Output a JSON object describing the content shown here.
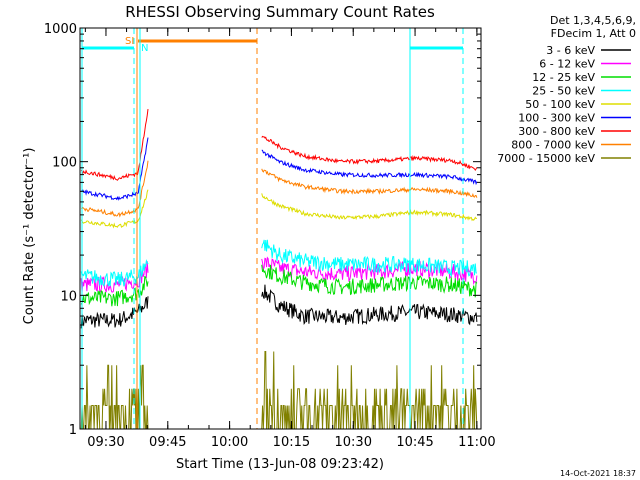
{
  "chart_data": {
    "type": "line",
    "title": "RHESSI Observing Summary Count Rates",
    "xlabel": "Start Time (13-Jun-08 09:23:42)",
    "ylabel": "Count Rate (s⁻¹ detector⁻¹)",
    "y_scale": "log",
    "ylim": [
      1,
      1000
    ],
    "xlim": [
      "09:23:42",
      "11:01:00"
    ],
    "x_ticks": [
      "09:30",
      "09:45",
      "10:00",
      "10:15",
      "10:30",
      "10:45",
      "11:00"
    ],
    "y_ticks": [
      "1",
      "10",
      "100",
      "1000"
    ],
    "legend_header": [
      "Det 1,3,4,5,6,9,",
      "FDecim 1, Att 0"
    ],
    "legend_position": "right",
    "footer": "14-Oct-2021 18:37",
    "flags": {
      "saa_label": "SI",
      "night_label": "N",
      "saa_color": "#ff8000",
      "night_color": "#00ffff"
    },
    "series": [
      {
        "name": "3 - 6 keV",
        "color": "#000000",
        "pre": [
          [
            9.4,
            6.5
          ],
          [
            9.55,
            6.5
          ],
          [
            9.63,
            7.5
          ],
          [
            9.67,
            9
          ]
        ],
        "post": [
          [
            10.13,
            11
          ],
          [
            10.2,
            8.5
          ],
          [
            10.3,
            7
          ],
          [
            10.45,
            6.8
          ],
          [
            10.6,
            7.2
          ],
          [
            10.75,
            7.5
          ],
          [
            10.9,
            7.2
          ],
          [
            11.0,
            6.8
          ]
        ]
      },
      {
        "name": "6 - 12 keV",
        "color": "#ff00ff",
        "pre": [
          [
            9.4,
            12
          ],
          [
            9.55,
            12
          ],
          [
            9.63,
            13
          ],
          [
            9.67,
            16
          ]
        ],
        "post": [
          [
            10.13,
            18
          ],
          [
            10.2,
            16
          ],
          [
            10.3,
            15
          ],
          [
            10.45,
            14.5
          ],
          [
            10.6,
            15
          ],
          [
            10.75,
            16
          ],
          [
            10.9,
            15
          ],
          [
            11.0,
            14
          ]
        ]
      },
      {
        "name": "12 - 25 keV",
        "color": "#00dd00",
        "pre": [
          [
            9.4,
            9.5
          ],
          [
            9.55,
            9.5
          ],
          [
            9.63,
            10.5
          ],
          [
            9.67,
            13
          ]
        ],
        "post": [
          [
            10.13,
            16
          ],
          [
            10.2,
            14
          ],
          [
            10.3,
            12.5
          ],
          [
            10.45,
            11.5
          ],
          [
            10.6,
            12
          ],
          [
            10.75,
            12.5
          ],
          [
            10.9,
            12
          ],
          [
            11.0,
            11
          ]
        ]
      },
      {
        "name": "25 - 50 keV",
        "color": "#00ffff",
        "pre": [
          [
            9.4,
            14
          ],
          [
            9.55,
            13
          ],
          [
            9.63,
            14
          ],
          [
            9.67,
            18
          ]
        ],
        "post": [
          [
            10.13,
            25
          ],
          [
            10.2,
            20
          ],
          [
            10.3,
            18
          ],
          [
            10.45,
            17
          ],
          [
            10.6,
            17
          ],
          [
            10.75,
            17
          ],
          [
            10.9,
            16
          ],
          [
            11.0,
            16
          ]
        ]
      },
      {
        "name": "50 - 100 keV",
        "color": "#dddd00",
        "pre": [
          [
            9.4,
            36
          ],
          [
            9.55,
            33
          ],
          [
            9.63,
            36
          ],
          [
            9.67,
            60
          ]
        ],
        "post": [
          [
            10.13,
            56
          ],
          [
            10.2,
            47
          ],
          [
            10.3,
            41
          ],
          [
            10.45,
            38
          ],
          [
            10.6,
            39
          ],
          [
            10.75,
            42
          ],
          [
            10.9,
            40
          ],
          [
            11.0,
            37
          ]
        ]
      },
      {
        "name": "100 - 300 keV",
        "color": "#0000ff",
        "pre": [
          [
            9.4,
            60
          ],
          [
            9.55,
            53
          ],
          [
            9.63,
            58
          ],
          [
            9.67,
            150
          ]
        ],
        "post": [
          [
            10.13,
            120
          ],
          [
            10.2,
            100
          ],
          [
            10.3,
            87
          ],
          [
            10.45,
            80
          ],
          [
            10.6,
            79
          ],
          [
            10.75,
            80
          ],
          [
            10.9,
            77
          ],
          [
            11.0,
            70
          ]
        ]
      },
      {
        "name": "300 - 800 keV",
        "color": "#ff0000",
        "pre": [
          [
            9.4,
            85
          ],
          [
            9.55,
            75
          ],
          [
            9.63,
            82
          ],
          [
            9.67,
            250
          ]
        ],
        "post": [
          [
            10.13,
            155
          ],
          [
            10.2,
            130
          ],
          [
            10.3,
            110
          ],
          [
            10.45,
            100
          ],
          [
            10.6,
            101
          ],
          [
            10.75,
            106
          ],
          [
            10.9,
            102
          ],
          [
            11.0,
            88
          ]
        ]
      },
      {
        "name": "800 - 7000 keV",
        "color": "#ff8000",
        "pre": [
          [
            9.4,
            45
          ],
          [
            9.55,
            40
          ],
          [
            9.63,
            44
          ],
          [
            9.67,
            100
          ]
        ],
        "post": [
          [
            10.13,
            88
          ],
          [
            10.2,
            74
          ],
          [
            10.3,
            65
          ],
          [
            10.45,
            60
          ],
          [
            10.6,
            60
          ],
          [
            10.75,
            62
          ],
          [
            10.9,
            60
          ],
          [
            11.0,
            55
          ]
        ]
      },
      {
        "name": "7000 - 15000 keV",
        "color": "#808000",
        "pre": [
          [
            9.4,
            1.5
          ],
          [
            9.5,
            1.5
          ],
          [
            9.6,
            1.5
          ],
          [
            9.67,
            1.5
          ]
        ],
        "post": [
          [
            10.13,
            1.5
          ],
          [
            10.3,
            1.5
          ],
          [
            10.5,
            1.5
          ],
          [
            10.7,
            1.7
          ],
          [
            10.9,
            1.7
          ],
          [
            11.0,
            1.5
          ]
        ]
      }
    ]
  }
}
